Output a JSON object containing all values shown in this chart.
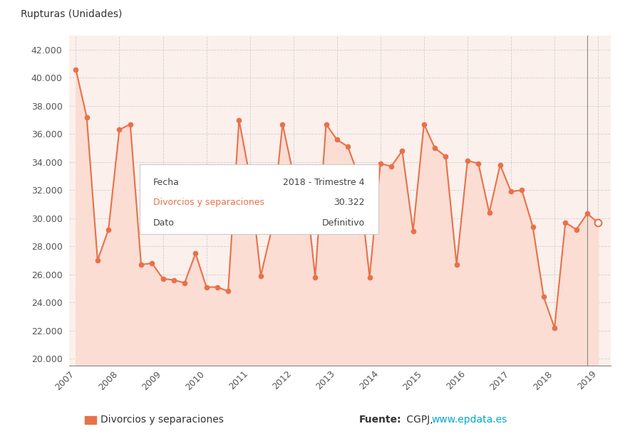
{
  "line_color": "#E8714A",
  "fill_color": "#FBDDD3",
  "background_color": "#FFFFFF",
  "plot_bg_color": "#FBF0EC",
  "grid_color": "#D0D0D0",
  "ylabel": "Rupturas (Unidades)",
  "ylim": [
    19500,
    43000
  ],
  "ytick_vals": [
    20000,
    22000,
    24000,
    26000,
    28000,
    30000,
    32000,
    34000,
    36000,
    38000,
    40000,
    42000
  ],
  "ytick_labels": [
    "20.000",
    "22.000",
    "24.000",
    "26.000",
    "28.000",
    "30.000",
    "32.000",
    "34.000",
    "36.000",
    "38.000",
    "40.000",
    "42.000"
  ],
  "raw_data": [
    [
      2007,
      1,
      40600
    ],
    [
      2007,
      2,
      37200
    ],
    [
      2007,
      3,
      27000
    ],
    [
      2007,
      4,
      29200
    ],
    [
      2008,
      1,
      36300
    ],
    [
      2008,
      2,
      36700
    ],
    [
      2008,
      3,
      26700
    ],
    [
      2008,
      4,
      26800
    ],
    [
      2009,
      1,
      25700
    ],
    [
      2009,
      2,
      25600
    ],
    [
      2009,
      3,
      25400
    ],
    [
      2009,
      4,
      27500
    ],
    [
      2010,
      1,
      25100
    ],
    [
      2010,
      2,
      25100
    ],
    [
      2010,
      3,
      24800
    ],
    [
      2010,
      4,
      37000
    ],
    [
      2011,
      1,
      32900
    ],
    [
      2011,
      2,
      25900
    ],
    [
      2011,
      3,
      29200
    ],
    [
      2011,
      4,
      36700
    ],
    [
      2012,
      1,
      33100
    ],
    [
      2012,
      2,
      33000
    ],
    [
      2012,
      3,
      25800
    ],
    [
      2012,
      4,
      36700
    ],
    [
      2013,
      1,
      35600
    ],
    [
      2013,
      2,
      35100
    ],
    [
      2013,
      3,
      33000
    ],
    [
      2013,
      4,
      25800
    ],
    [
      2014,
      1,
      33900
    ],
    [
      2014,
      2,
      33700
    ],
    [
      2014,
      3,
      34800
    ],
    [
      2014,
      4,
      29100
    ],
    [
      2015,
      1,
      36700
    ],
    [
      2015,
      2,
      35000
    ],
    [
      2015,
      3,
      34400
    ],
    [
      2015,
      4,
      26700
    ],
    [
      2016,
      1,
      34100
    ],
    [
      2016,
      2,
      33900
    ],
    [
      2016,
      3,
      30400
    ],
    [
      2016,
      4,
      33800
    ],
    [
      2017,
      1,
      31900
    ],
    [
      2017,
      2,
      32000
    ],
    [
      2017,
      3,
      29400
    ],
    [
      2017,
      4,
      24400
    ],
    [
      2018,
      1,
      22200
    ],
    [
      2018,
      2,
      29700
    ],
    [
      2018,
      3,
      29200
    ],
    [
      2018,
      4,
      30322
    ],
    [
      2019,
      1,
      29700
    ]
  ],
  "provisional_index": 48,
  "vline_x": 2018.75,
  "tooltip_fecha": "2018 - Trimestre 4",
  "tooltip_divorcios": "30.322",
  "tooltip_dato": "Definitivo",
  "legend_label": "Divorcios y separaciones",
  "fuente_url_color": "#00AACC",
  "orange_text_color": "#E8714A",
  "text_color": "#444444"
}
